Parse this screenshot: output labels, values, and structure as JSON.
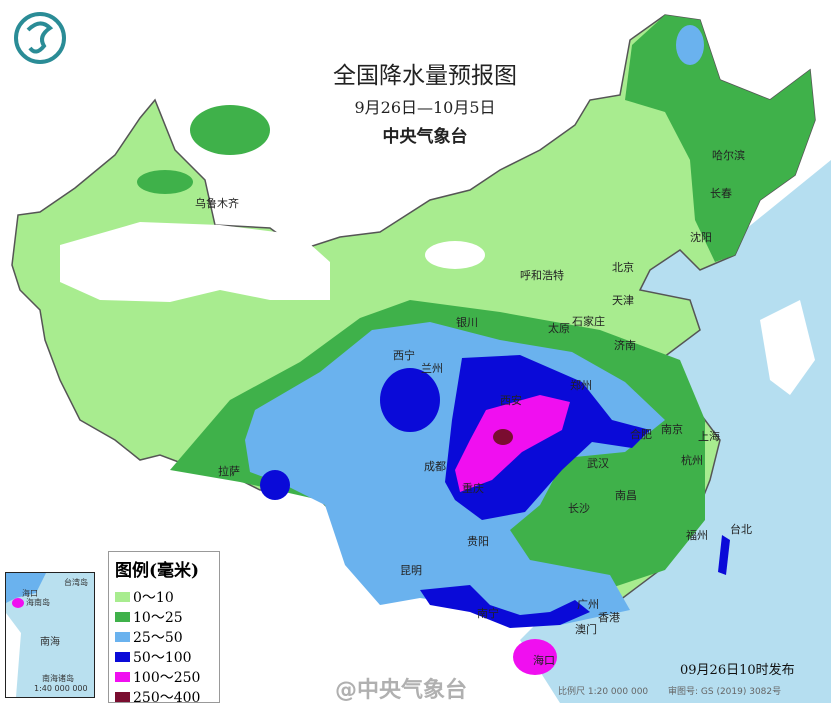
{
  "header": {
    "title": "全国降水量预报图",
    "date_range": "9月26日—10月5日",
    "issuer": "中央气象台"
  },
  "logo": {
    "name": "cma-logo",
    "color": "#2a8c96"
  },
  "cities": [
    "乌鲁木齐",
    "哈尔滨",
    "长春",
    "沈阳",
    "呼和浩特",
    "北京",
    "天津",
    "银川",
    "太原",
    "石家庄",
    "济南",
    "西宁",
    "兰州",
    "西安",
    "郑州",
    "合肥",
    "南京",
    "上海",
    "杭州",
    "成都",
    "重庆",
    "武汉",
    "南昌",
    "长沙",
    "贵阳",
    "福州",
    "台北",
    "拉萨",
    "昆明",
    "南宁",
    "广州",
    "香港",
    "澳门",
    "海口"
  ],
  "legend": {
    "title": "图例(毫米)",
    "items": [
      {
        "label": "0～10",
        "color": "#a8ec8f"
      },
      {
        "label": "10～25",
        "color": "#3fb14a"
      },
      {
        "label": "25～50",
        "color": "#6ab2ee"
      },
      {
        "label": "50～100",
        "color": "#0a0ad8"
      },
      {
        "label": "100～250",
        "color": "#f00ff0"
      },
      {
        "label": "250～400",
        "color": "#7a0d30"
      }
    ]
  },
  "inset": {
    "title": "南海诸岛",
    "scale": "1:40 000 000",
    "labels": [
      "海口",
      "海南岛",
      "台湾岛",
      "南海"
    ]
  },
  "footer": {
    "issued": "09月26日10时发布",
    "watermark": "@中央气象台",
    "scale": "比例尺 1:20 000 000",
    "approval": "审图号: GS (2019) 3082号"
  }
}
